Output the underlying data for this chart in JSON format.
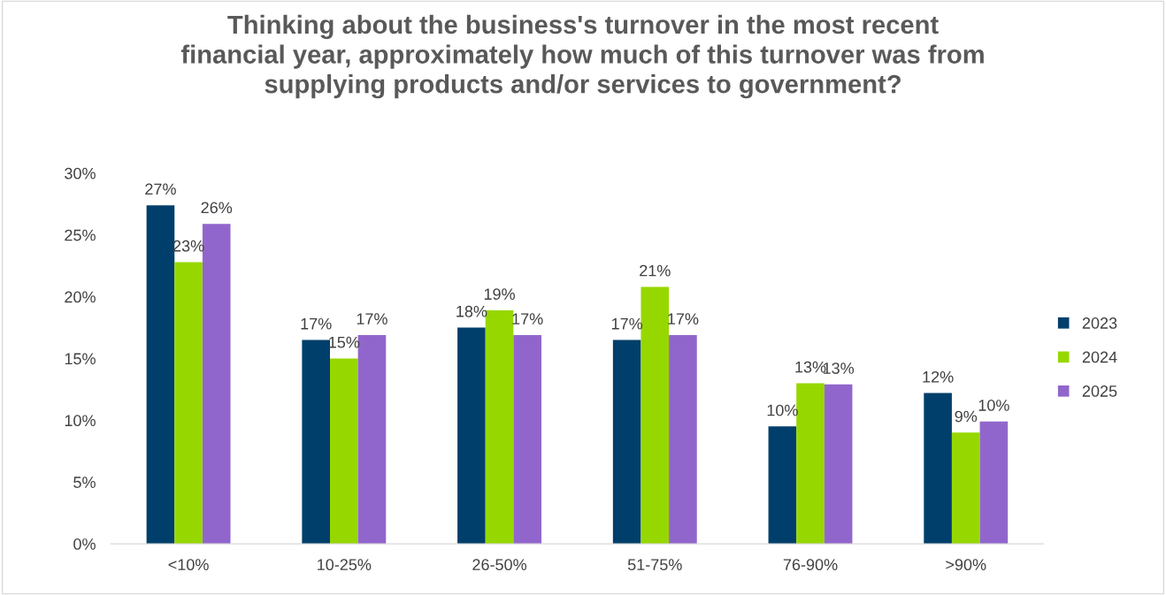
{
  "chart_data": {
    "type": "bar",
    "title": "Thinking about the business's turnover in the most recent\nfinancial year, approximately how much of this turnover was from\nsupplying products and/or services to government?",
    "categories": [
      "<10%",
      "10-25%",
      "26-50%",
      "51-75%",
      "76-90%",
      ">90%"
    ],
    "series": [
      {
        "name": "2023",
        "color": "#003f6b",
        "values": [
          27.4,
          16.5,
          17.5,
          16.5,
          9.5,
          12.2
        ],
        "value_labels": [
          "27%",
          "17%",
          "18%",
          "17%",
          "10%",
          "12%"
        ]
      },
      {
        "name": "2024",
        "color": "#97d700",
        "values": [
          22.8,
          15.0,
          18.9,
          20.8,
          13.0,
          9.0
        ],
        "value_labels": [
          "23%",
          "15%",
          "19%",
          "21%",
          "13%",
          "9%"
        ]
      },
      {
        "name": "2025",
        "color": "#9166cc",
        "values": [
          25.9,
          16.9,
          16.9,
          16.9,
          12.9,
          9.9
        ],
        "value_labels": [
          "26%",
          "17%",
          "17%",
          "17%",
          "13%",
          "10%"
        ]
      }
    ],
    "ylim": [
      0,
      30
    ],
    "yticks": [
      {
        "value": 0,
        "label": "0%"
      },
      {
        "value": 5,
        "label": "5%"
      },
      {
        "value": 10,
        "label": "10%"
      },
      {
        "value": 15,
        "label": "15%"
      },
      {
        "value": 20,
        "label": "20%"
      },
      {
        "value": 25,
        "label": "25%"
      },
      {
        "value": 30,
        "label": "30%"
      }
    ],
    "grid": false,
    "legend": "right"
  }
}
